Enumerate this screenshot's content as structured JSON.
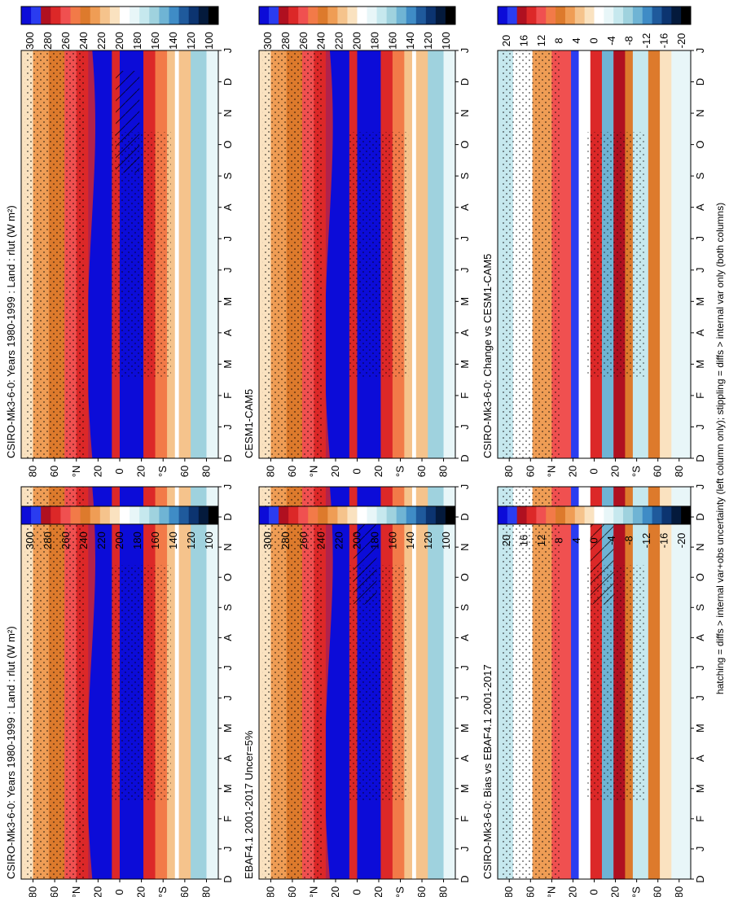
{
  "figure": {
    "footnote": "hatching = diffs > internal var+obs uncertainty (left column only); stippling = diffs > internal var only (both columns)"
  },
  "chart_data": [
    {
      "type": "heatmap",
      "id": "model-clim-1",
      "title": "CSIRO-Mk3-6-0: Years 1980-1999 : Land : rlut (W m²)",
      "x_labels": [
        "D",
        "J",
        "F",
        "M",
        "A",
        "M",
        "J",
        "J",
        "A",
        "S",
        "O",
        "N",
        "D",
        "J"
      ],
      "y_labels": [
        "80",
        "60",
        "°N",
        "20",
        "0",
        "20",
        "°S",
        "60",
        "80"
      ],
      "colorbar": [
        "300",
        "280",
        "260",
        "240",
        "220",
        "200",
        "180",
        "160",
        "140",
        "120",
        "100"
      ],
      "kind": "clim",
      "hatch": true
    },
    {
      "type": "heatmap",
      "id": "model-clim-2",
      "title": "CSIRO-Mk3-6-0: Years 1980-1999 : Land : rlut (W m²)",
      "x_labels": [
        "D",
        "J",
        "F",
        "M",
        "A",
        "M",
        "J",
        "J",
        "A",
        "S",
        "O",
        "N",
        "D",
        "J"
      ],
      "y_labels": [
        "80",
        "60",
        "°N",
        "20",
        "0",
        "20",
        "°S",
        "60",
        "80"
      ],
      "colorbar": [
        "300",
        "280",
        "260",
        "240",
        "220",
        "200",
        "180",
        "160",
        "140",
        "120",
        "100"
      ],
      "kind": "clim",
      "hatch": false
    },
    {
      "type": "heatmap",
      "id": "obs-clim",
      "title": "EBAF4.1 2001-2017 Uncer=5%",
      "x_labels": [
        "D",
        "J",
        "F",
        "M",
        "A",
        "M",
        "J",
        "J",
        "A",
        "S",
        "O",
        "N",
        "D",
        "J"
      ],
      "y_labels": [
        "80",
        "60",
        "°N",
        "20",
        "0",
        "20",
        "°S",
        "60",
        "80"
      ],
      "colorbar": [
        "300",
        "280",
        "260",
        "240",
        "220",
        "200",
        "180",
        "160",
        "140",
        "120",
        "100"
      ],
      "kind": "clim",
      "hatch": true
    },
    {
      "type": "heatmap",
      "id": "ref-clim",
      "title": "CESM1-CAM5",
      "x_labels": [
        "D",
        "J",
        "F",
        "M",
        "A",
        "M",
        "J",
        "J",
        "A",
        "S",
        "O",
        "N",
        "D",
        "J"
      ],
      "y_labels": [
        "80",
        "60",
        "°N",
        "20",
        "0",
        "20",
        "°S",
        "60",
        "80"
      ],
      "colorbar": [
        "300",
        "280",
        "260",
        "240",
        "220",
        "200",
        "180",
        "160",
        "140",
        "120",
        "100"
      ],
      "kind": "clim",
      "hatch": false
    },
    {
      "type": "heatmap",
      "id": "bias",
      "title": "CSIRO-Mk3-6-0: Bias vs EBAF4.1 2001-2017",
      "x_labels": [
        "D",
        "J",
        "F",
        "M",
        "A",
        "M",
        "J",
        "J",
        "A",
        "S",
        "O",
        "N",
        "D",
        "J"
      ],
      "y_labels": [
        "80",
        "60",
        "°N",
        "20",
        "0",
        "20",
        "°S",
        "60",
        "80"
      ],
      "colorbar": [
        "20",
        "16",
        "12",
        "8",
        "4",
        "0",
        "-4",
        "-8",
        "-12",
        "-16",
        "-20"
      ],
      "kind": "diff",
      "hatch": true
    },
    {
      "type": "heatmap",
      "id": "change",
      "title": "CSIRO-Mk3-6-0: Change vs CESM1-CAM5",
      "x_labels": [
        "D",
        "J",
        "F",
        "M",
        "A",
        "M",
        "J",
        "J",
        "A",
        "S",
        "O",
        "N",
        "D",
        "J"
      ],
      "y_labels": [
        "80",
        "60",
        "°N",
        "20",
        "0",
        "20",
        "°S",
        "60",
        "80"
      ],
      "colorbar": [
        "20",
        "16",
        "12",
        "8",
        "4",
        "0",
        "-4",
        "-8",
        "-12",
        "-16",
        "-20"
      ],
      "kind": "diff",
      "hatch": false
    }
  ],
  "colors": {
    "clim_scale": [
      "#0c0cd8",
      "#2a3cf0",
      "#b01020",
      "#dc2828",
      "#f05050",
      "#f27a48",
      "#dd7a2c",
      "#ef9d55",
      "#f5c38c",
      "#fae2c0",
      "#ffffff",
      "#e8f6f8",
      "#c6e8ee",
      "#9fd2de",
      "#6fb4d4",
      "#3f8cc6",
      "#1f5a9c",
      "#0c3470",
      "#041a3c",
      "#000000"
    ],
    "diff_scale": [
      "#0c0cd8",
      "#2a3cf0",
      "#b01020",
      "#dc2828",
      "#f05050",
      "#f27a48",
      "#dd7a2c",
      "#ef9d55",
      "#f5c38c",
      "#fae2c0",
      "#ffffff",
      "#e8f6f8",
      "#c6e8ee",
      "#9fd2de",
      "#6fb4d4",
      "#3f8cc6",
      "#1f5a9c",
      "#0c3470",
      "#041a3c",
      "#000000"
    ]
  }
}
